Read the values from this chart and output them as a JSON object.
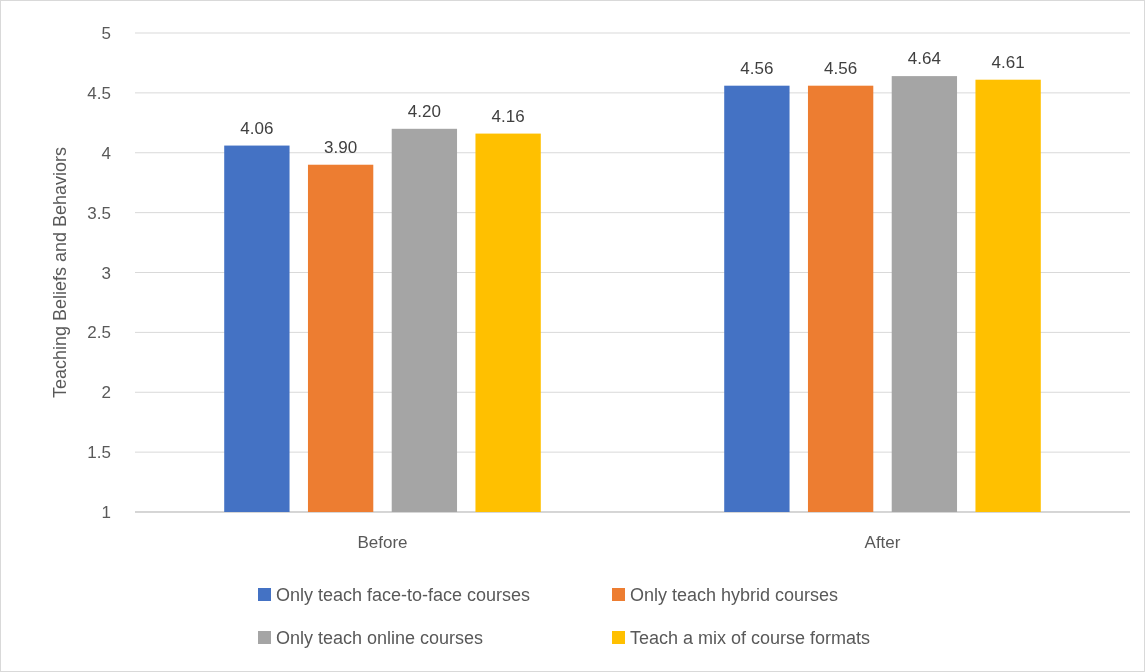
{
  "chart_data": {
    "type": "bar",
    "ylabel": "Teaching Beliefs and Behaviors",
    "categories": [
      "Before",
      "After"
    ],
    "series": [
      {
        "name": "Only teach face-to-face courses",
        "color": "#4472c4",
        "values": [
          4.06,
          4.56
        ],
        "value_labels": [
          "4.06",
          "4.56"
        ]
      },
      {
        "name": "Only teach hybrid courses",
        "color": "#ed7d31",
        "values": [
          3.9,
          4.56
        ],
        "value_labels": [
          "3.90",
          "4.56"
        ]
      },
      {
        "name": "Only teach online courses",
        "color": "#a5a5a5",
        "values": [
          4.2,
          4.64
        ],
        "value_labels": [
          "4.20",
          "4.64"
        ]
      },
      {
        "name": "Teach a mix of course formats",
        "color": "#ffc000",
        "values": [
          4.16,
          4.61
        ],
        "value_labels": [
          "4.16",
          "4.61"
        ]
      }
    ],
    "ylim": [
      1,
      5
    ],
    "yticks": [
      1,
      1.5,
      2,
      2.5,
      3,
      3.5,
      4,
      4.5,
      5
    ],
    "grid": "y",
    "legend": "bottom"
  }
}
